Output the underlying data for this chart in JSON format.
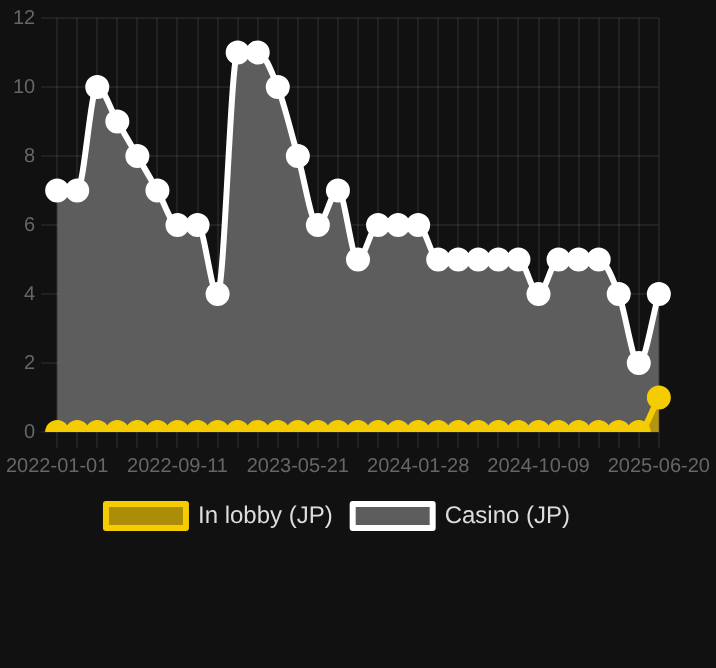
{
  "chart_data": {
    "type": "area",
    "categories": [
      "2022-01-01",
      null,
      null,
      null,
      null,
      null,
      "2022-09-11",
      null,
      null,
      null,
      null,
      null,
      "2023-05-21",
      null,
      null,
      null,
      null,
      null,
      "2024-01-28",
      null,
      null,
      null,
      null,
      null,
      "2024-10-09",
      null,
      null,
      null,
      null,
      null,
      "2025-06-20"
    ],
    "series": [
      {
        "name": "In lobby (JP)",
        "color": "#f5cc00",
        "values": [
          0,
          0,
          0,
          0,
          0,
          0,
          0,
          0,
          0,
          0,
          0,
          0,
          0,
          0,
          0,
          0,
          0,
          0,
          0,
          0,
          0,
          0,
          0,
          0,
          0,
          0,
          0,
          0,
          0,
          0,
          1
        ]
      },
      {
        "name": "Casino (JP)",
        "color": "#ffffff",
        "values": [
          7,
          7,
          10,
          9,
          8,
          7,
          6,
          6,
          4,
          11,
          11,
          10,
          8,
          6,
          7,
          5,
          6,
          6,
          6,
          5,
          5,
          5,
          5,
          5,
          4,
          5,
          5,
          5,
          4,
          2,
          4
        ]
      }
    ],
    "ylim": [
      0,
      12
    ],
    "yticks": [
      0,
      2,
      4,
      6,
      8,
      10,
      12
    ],
    "grid": true,
    "legend": "bottom",
    "marker": "circle"
  }
}
